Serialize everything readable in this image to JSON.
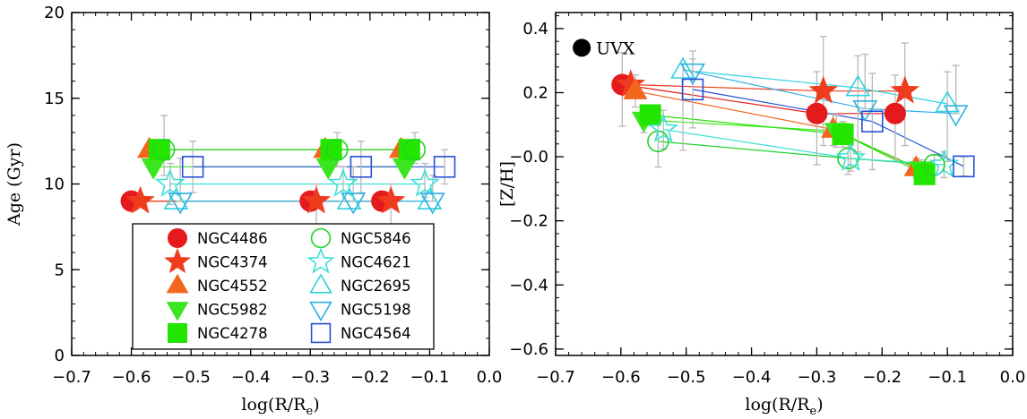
{
  "chart_data": [
    {
      "type": "scatter",
      "panel": "left",
      "title": "",
      "xlabel": "log(R/R",
      "xlabel_sub": "e",
      "xlabel_close": ")",
      "ylabel": "Age (Gyr)",
      "xlim": [
        -0.7,
        0.0
      ],
      "ylim": [
        0,
        20
      ],
      "xticks": [
        -0.7,
        -0.6,
        -0.5,
        -0.4,
        -0.3,
        -0.2,
        -0.1,
        0.0
      ],
      "xtick_labels": [
        "−0.7",
        "−0.6",
        "−0.5",
        "−0.4",
        "−0.3",
        "−0.2",
        "−0.1",
        "0.0"
      ],
      "yticks": [
        0,
        5,
        10,
        15,
        20
      ],
      "ytick_labels": [
        "0",
        "5",
        "10",
        "15",
        "20"
      ],
      "legend_position": "bottom-center",
      "series": [
        {
          "name": "NGC4486",
          "marker": "circle",
          "filled": true,
          "color": "#e41a1c",
          "points": [
            {
              "x": -0.6,
              "y": 9.0,
              "err": [
                0.0,
                0.0
              ]
            },
            {
              "x": -0.3,
              "y": 9.0,
              "err": [
                0.0,
                0.0
              ]
            },
            {
              "x": -0.18,
              "y": 9.0,
              "err": [
                0.0,
                0.0
              ]
            }
          ]
        },
        {
          "name": "NGC4374",
          "marker": "star",
          "filled": true,
          "color": "#f03c1e",
          "points": [
            {
              "x": -0.585,
              "y": 9.0,
              "err": [
                0.0,
                0.0
              ]
            },
            {
              "x": -0.29,
              "y": 9.0,
              "err": [
                1.8,
                1.0
              ]
            },
            {
              "x": -0.165,
              "y": 9.0,
              "err": [
                1.6,
                1.0
              ]
            }
          ]
        },
        {
          "name": "NGC4552",
          "marker": "triangle-up",
          "filled": true,
          "color": "#f2661d",
          "points": [
            {
              "x": -0.57,
              "y": 12.0,
              "err": [
                0.0,
                0.0
              ]
            },
            {
              "x": -0.275,
              "y": 12.0,
              "err": [
                0.0,
                0.0
              ]
            },
            {
              "x": -0.148,
              "y": 12.0,
              "err": [
                0.0,
                0.0
              ]
            }
          ]
        },
        {
          "name": "NGC5982",
          "marker": "triangle-down",
          "filled": true,
          "color": "#3ce61e",
          "points": [
            {
              "x": -0.563,
              "y": 11.0,
              "err": [
                0.0,
                0.0
              ]
            },
            {
              "x": -0.27,
              "y": 11.0,
              "err": [
                0.0,
                0.0
              ]
            },
            {
              "x": -0.142,
              "y": 11.0,
              "err": [
                0.0,
                0.0
              ]
            }
          ]
        },
        {
          "name": "NGC4278",
          "marker": "square",
          "filled": true,
          "color": "#22e600",
          "points": [
            {
              "x": -0.553,
              "y": 12.0,
              "err": [
                0.0,
                0.0
              ]
            },
            {
              "x": -0.265,
              "y": 12.0,
              "err": [
                0.0,
                0.0
              ]
            },
            {
              "x": -0.134,
              "y": 12.0,
              "err": [
                0.0,
                0.0
              ]
            }
          ]
        },
        {
          "name": "NGC5846",
          "marker": "circle",
          "filled": false,
          "color": "#22d22a",
          "points": [
            {
              "x": -0.545,
              "y": 12.0,
              "err": [
                1.5,
                2.0
              ]
            },
            {
              "x": -0.255,
              "y": 12.0,
              "err": [
                1.0,
                1.0
              ]
            },
            {
              "x": -0.125,
              "y": 12.0,
              "err": [
                0.8,
                1.0
              ]
            }
          ]
        },
        {
          "name": "NGC4621",
          "marker": "star",
          "filled": false,
          "color": "#3ee0d8",
          "points": [
            {
              "x": -0.535,
              "y": 10.0,
              "err": [
                1.2,
                1.2
              ]
            },
            {
              "x": -0.245,
              "y": 10.0,
              "err": [
                1.0,
                1.0
              ]
            },
            {
              "x": -0.108,
              "y": 10.0,
              "err": [
                0.8,
                1.2
              ]
            }
          ]
        },
        {
          "name": "NGC2695",
          "marker": "triangle-up",
          "filled": false,
          "color": "#2fd0e0",
          "points": [
            {
              "x": -0.525,
              "y": 9.0,
              "err": [
                0.0,
                0.0
              ]
            },
            {
              "x": -0.235,
              "y": 9.0,
              "err": [
                0.0,
                0.0
              ]
            },
            {
              "x": -0.1,
              "y": 9.0,
              "err": [
                0.0,
                0.0
              ]
            }
          ]
        },
        {
          "name": "NGC5198",
          "marker": "triangle-down",
          "filled": false,
          "color": "#2fb0e0",
          "points": [
            {
              "x": -0.518,
              "y": 9.0,
              "err": [
                0.0,
                2.5
              ]
            },
            {
              "x": -0.228,
              "y": 9.0,
              "err": [
                0.0,
                2.0
              ]
            },
            {
              "x": -0.095,
              "y": 9.0,
              "err": [
                0.0,
                1.5
              ]
            }
          ]
        },
        {
          "name": "NGC4564",
          "marker": "square",
          "filled": false,
          "color": "#2450d6",
          "points": [
            {
              "x": -0.497,
              "y": 11.0,
              "err": [
                1.5,
                1.5
              ]
            },
            {
              "x": -0.215,
              "y": 11.0,
              "err": [
                1.5,
                1.5
              ]
            },
            {
              "x": -0.075,
              "y": 11.0,
              "err": [
                1.0,
                1.0
              ]
            }
          ]
        }
      ]
    },
    {
      "type": "scatter",
      "panel": "right",
      "title": "",
      "xlabel": "log(R/R",
      "xlabel_sub": "e",
      "xlabel_close": ")",
      "ylabel": "[Z/H]",
      "xlim": [
        -0.7,
        0.0
      ],
      "ylim": [
        -0.62,
        0.45
      ],
      "xticks": [
        -0.7,
        -0.6,
        -0.5,
        -0.4,
        -0.3,
        -0.2,
        -0.1,
        0.0
      ],
      "xtick_labels": [
        "−0.7",
        "−0.6",
        "−0.5",
        "−0.4",
        "−0.3",
        "−0.2",
        "−0.1",
        "0.0"
      ],
      "yticks": [
        -0.6,
        -0.4,
        -0.2,
        0.0,
        0.2,
        0.4
      ],
      "ytick_labels": [
        "−0.6",
        "−0.4",
        "−0.2",
        "−0.0",
        "0.2",
        "0.4"
      ],
      "annotation": {
        "text": "UVX",
        "x": -0.66,
        "y": 0.34,
        "marker": "circle",
        "color": "#000000"
      },
      "series": [
        {
          "name": "NGC4486",
          "marker": "circle",
          "filled": true,
          "color": "#e41a1c",
          "points": [
            {
              "x": -0.598,
              "y": 0.225,
              "err": [
                0.13,
                0.1
              ]
            },
            {
              "x": -0.3,
              "y": 0.135,
              "err": [
                0.16,
                0.13
              ]
            },
            {
              "x": -0.18,
              "y": 0.135,
              "err": [
                0.14,
                0.12
              ]
            }
          ]
        },
        {
          "name": "NGC4374",
          "marker": "star",
          "filled": true,
          "color": "#f03c1e",
          "points": [
            {
              "x": -0.585,
              "y": 0.225,
              "err": [
                0.0,
                0.0
              ]
            },
            {
              "x": -0.29,
              "y": 0.205,
              "err": [
                0.17,
                0.17
              ]
            },
            {
              "x": -0.165,
              "y": 0.205,
              "err": [
                0.17,
                0.15
              ]
            }
          ]
        },
        {
          "name": "NGC4552",
          "marker": "triangle-up",
          "filled": true,
          "color": "#f2661d",
          "points": [
            {
              "x": -0.578,
              "y": 0.205,
              "err": [
                0.05,
                0.05
              ]
            },
            {
              "x": -0.275,
              "y": 0.085,
              "err": [
                0.05,
                0.05
              ]
            },
            {
              "x": -0.148,
              "y": -0.035,
              "err": [
                0.03,
                0.03
              ]
            }
          ]
        },
        {
          "name": "NGC5982",
          "marker": "triangle-down",
          "filled": true,
          "color": "#3ce61e",
          "points": [
            {
              "x": -0.565,
              "y": 0.115,
              "err": [
                0.04,
                0.04
              ]
            },
            {
              "x": -0.27,
              "y": 0.08,
              "err": [
                0.05,
                0.05
              ]
            },
            {
              "x": -0.14,
              "y": -0.04,
              "err": [
                0.03,
                0.03
              ]
            }
          ]
        },
        {
          "name": "NGC4278",
          "marker": "square",
          "filled": true,
          "color": "#22e600",
          "points": [
            {
              "x": -0.555,
              "y": 0.13,
              "err": [
                0.03,
                0.03
              ]
            },
            {
              "x": -0.26,
              "y": 0.07,
              "err": [
                0.04,
                0.04
              ]
            },
            {
              "x": -0.135,
              "y": -0.055,
              "err": [
                0.03,
                0.03
              ]
            }
          ]
        },
        {
          "name": "NGC5846",
          "marker": "circle",
          "filled": false,
          "color": "#22d22a",
          "points": [
            {
              "x": -0.543,
              "y": 0.048,
              "err": [
                0.08,
                0.08
              ]
            },
            {
              "x": -0.252,
              "y": -0.005,
              "err": [
                0.05,
                0.05
              ]
            },
            {
              "x": -0.12,
              "y": -0.025,
              "err": [
                0.03,
                0.03
              ]
            }
          ]
        },
        {
          "name": "NGC4621",
          "marker": "star",
          "filled": false,
          "color": "#3ee0d8",
          "points": [
            {
              "x": -0.535,
              "y": 0.085,
              "err": [
                0.06,
                0.06
              ]
            },
            {
              "x": -0.248,
              "y": -0.005,
              "err": [
                0.04,
                0.04
              ]
            },
            {
              "x": -0.105,
              "y": -0.025,
              "err": [
                0.04,
                0.04
              ]
            }
          ]
        },
        {
          "name": "NGC2695",
          "marker": "triangle-up",
          "filled": false,
          "color": "#2fd0e0",
          "points": [
            {
              "x": -0.505,
              "y": 0.27,
              "err": [
                0.25,
                0.02
              ]
            },
            {
              "x": -0.237,
              "y": 0.215,
              "err": [
                0.2,
                0.1
              ]
            },
            {
              "x": -0.1,
              "y": 0.165,
              "err": [
                0.18,
                0.1
              ]
            }
          ]
        },
        {
          "name": "NGC5198",
          "marker": "triangle-down",
          "filled": false,
          "color": "#2fb0e0",
          "points": [
            {
              "x": -0.49,
              "y": 0.265,
              "err": [
                0.0,
                0.04
              ]
            },
            {
              "x": -0.226,
              "y": 0.15,
              "err": [
                0.0,
                0.17
              ]
            },
            {
              "x": -0.087,
              "y": 0.135,
              "err": [
                0.0,
                0.15
              ]
            }
          ]
        },
        {
          "name": "NGC4564",
          "marker": "square",
          "filled": false,
          "color": "#2450d6",
          "points": [
            {
              "x": -0.49,
              "y": 0.21,
              "err": [
                0.12,
                0.12
              ]
            },
            {
              "x": -0.215,
              "y": 0.11,
              "err": [
                0.15,
                0.15
              ]
            },
            {
              "x": -0.075,
              "y": -0.03,
              "err": [
                0.03,
                0.03
              ]
            }
          ]
        }
      ]
    }
  ]
}
